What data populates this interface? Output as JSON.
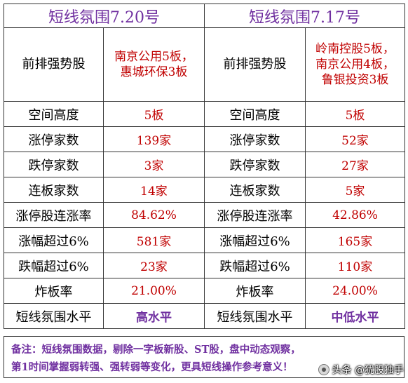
{
  "columns": [
    {
      "title": "短线氛围7.20号",
      "color": "#7030a0"
    },
    {
      "title": "短线氛围7.17号",
      "color": "#7030a0"
    }
  ],
  "lead_row": {
    "label": "前排强势股",
    "left_lines": [
      "南京公用5板，",
      "惠城环保3板"
    ],
    "right_lines": [
      "岭南控股5板，",
      "南京公用4板，",
      "鲁银投资3板"
    ]
  },
  "rows": [
    {
      "label": "空间高度",
      "left": "5板",
      "right": "5板"
    },
    {
      "label": "涨停家数",
      "left": "139家",
      "right": "52家"
    },
    {
      "label": "跌停家数",
      "left": "3家",
      "right": "27家"
    },
    {
      "label": "连板家数",
      "left": "14家",
      "right": "5家"
    },
    {
      "label": "涨停股连涨率",
      "left": "84.62%",
      "right": "42.86%"
    },
    {
      "label": "涨幅超过6%",
      "left": "581家",
      "right": "165家"
    },
    {
      "label": "跌幅超过6%",
      "left": "23家",
      "right": "110家"
    },
    {
      "label": "炸板率",
      "left": "21.00%",
      "right": "24.00%"
    }
  ],
  "level_row": {
    "label": "短线氛围水平",
    "left": "高水平",
    "right": "中低水平"
  },
  "note": {
    "line1": "备注：短线氛围数据，剔除一字板新股、ST股，盘中动态观察，",
    "line2": "第1时间掌握弱转强、强转弱等变化，更具短线操作参考意义！"
  },
  "watermark": {
    "text": "头条 @犹股独手",
    "icon": "avatar-icon"
  },
  "colors": {
    "value_red": "#c00000",
    "accent_purple": "#7030a0",
    "border": "#333333"
  }
}
